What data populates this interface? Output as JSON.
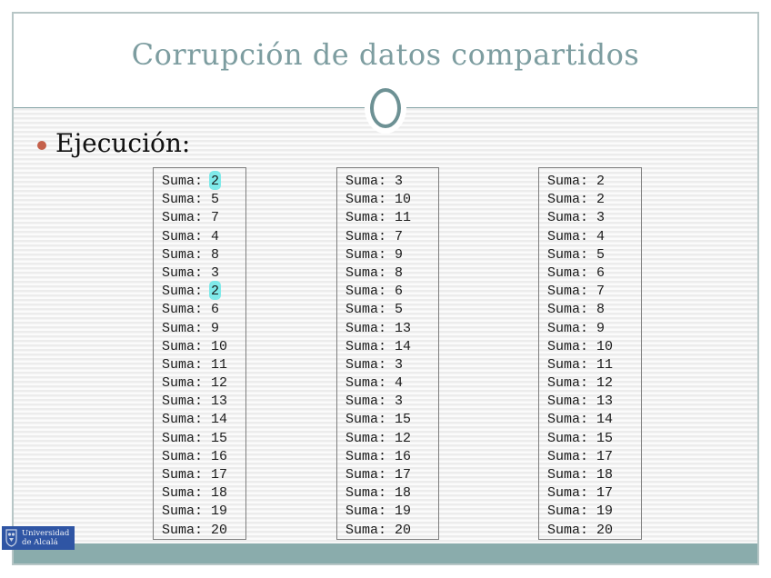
{
  "title": "Corrupción de datos compartidos",
  "bullet": {
    "label": "Ejecución:"
  },
  "columns": [
    {
      "prefix": "Suma:",
      "values": [
        2,
        5,
        7,
        4,
        8,
        3,
        2,
        6,
        9,
        10,
        11,
        12,
        13,
        14,
        15,
        16,
        17,
        18,
        19,
        20
      ],
      "highlighted_indices": [
        0,
        6
      ]
    },
    {
      "prefix": "Suma:",
      "values": [
        3,
        10,
        11,
        7,
        9,
        8,
        6,
        5,
        13,
        14,
        3,
        4,
        3,
        15,
        12,
        16,
        17,
        18,
        19,
        20
      ],
      "highlighted_indices": []
    },
    {
      "prefix": "Suma:",
      "values": [
        2,
        2,
        3,
        4,
        5,
        6,
        7,
        8,
        9,
        10,
        11,
        12,
        13,
        14,
        15,
        17,
        18,
        17,
        19,
        20
      ],
      "highlighted_indices": []
    }
  ],
  "footer": {
    "logo_line1": "Universidad",
    "logo_line2": "de Alcalá"
  },
  "colors": {
    "title": "#7d9da0",
    "accent_line": "#85a3a6",
    "circle_stroke": "#6d9194",
    "frame_border": "#b7c6c6",
    "bullet": "#c4604a",
    "highlight": "#7ee9e9",
    "footer_bar": "#8aacac",
    "logo_blue": "#2f55a4"
  }
}
